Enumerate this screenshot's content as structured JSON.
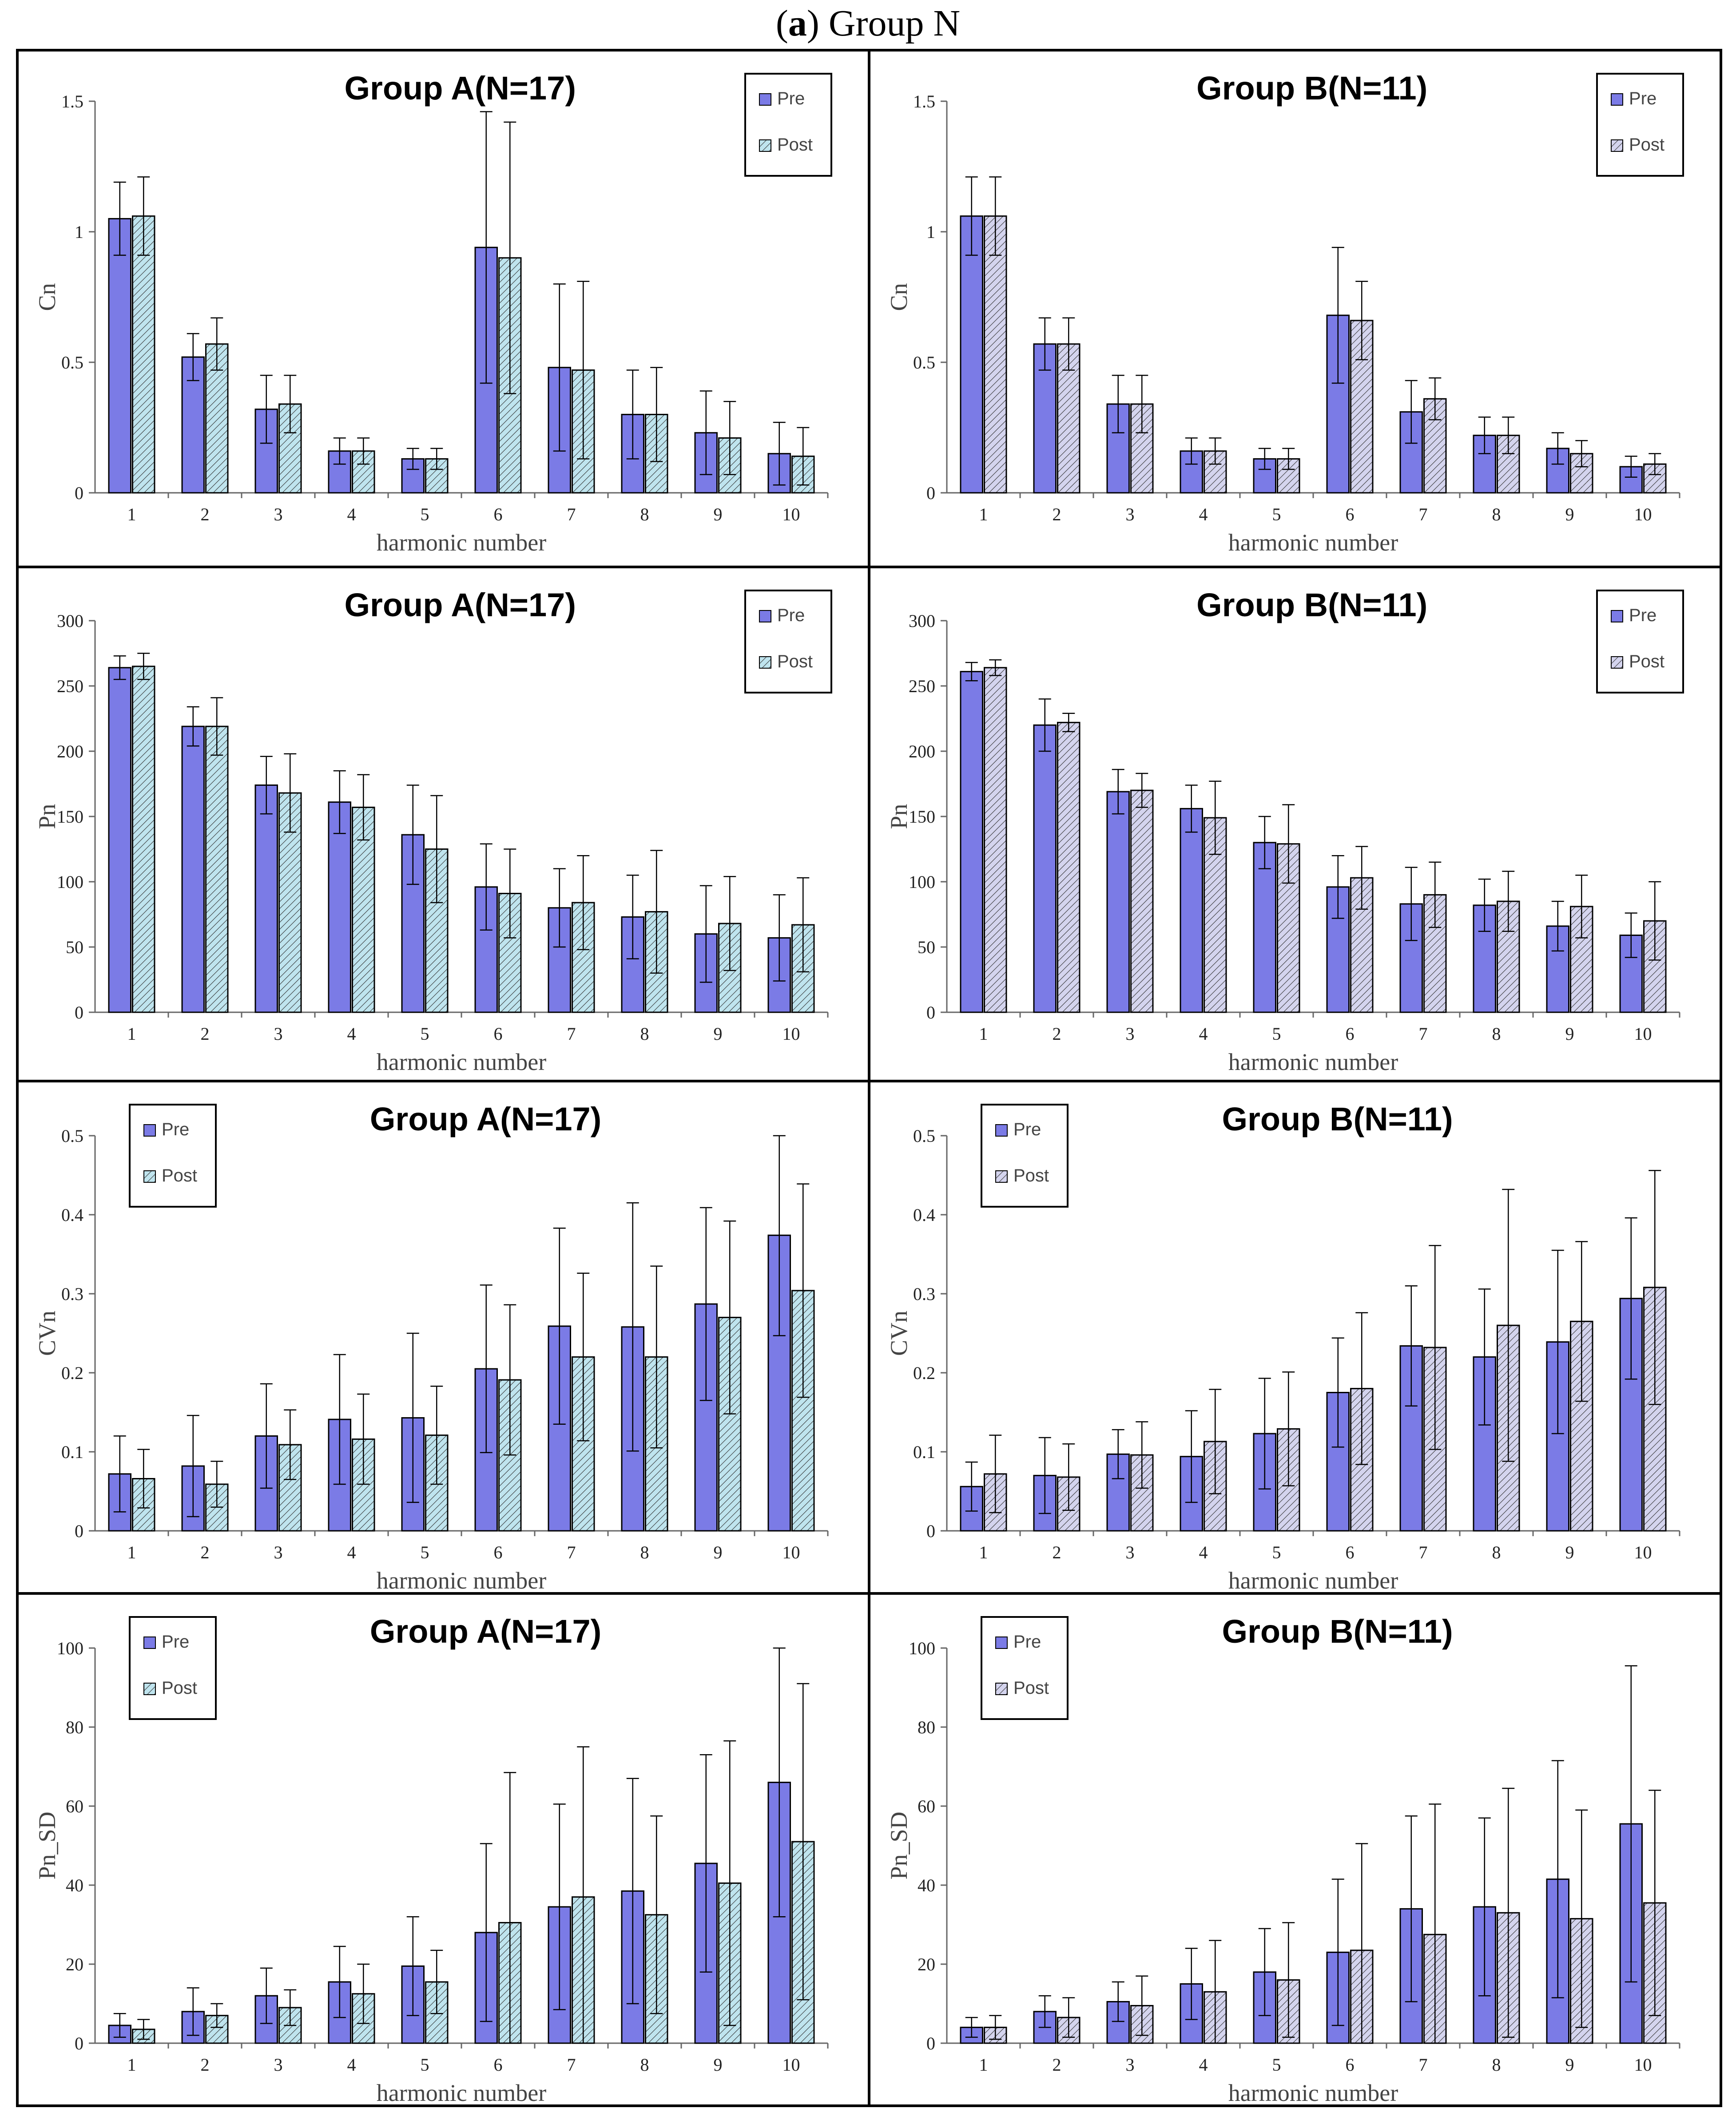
{
  "figure": {
    "label": "a",
    "title": "Group N"
  },
  "colors": {
    "pre": "#7b7be6",
    "post_a": "#bfe4ee",
    "post_b": "#d4d4ee",
    "hatch": "#333333",
    "axis": "#666666"
  },
  "chart_data": [
    {
      "type": "bar",
      "title": "Group A(N=17)",
      "xlabel": "harmonic number",
      "ylabel": "Cn",
      "categories": [
        "1",
        "2",
        "3",
        "4",
        "5",
        "6",
        "7",
        "8",
        "9",
        "10"
      ],
      "ylim": [
        0,
        1.5
      ],
      "yticks": [
        "0",
        "0.5",
        "1",
        "1.5"
      ],
      "legend": "top-right",
      "series": [
        {
          "name": "Pre",
          "values": [
            1.05,
            0.52,
            0.32,
            0.16,
            0.13,
            0.94,
            0.48,
            0.3,
            0.23,
            0.15
          ],
          "errors": [
            0.14,
            0.09,
            0.13,
            0.05,
            0.04,
            0.52,
            0.32,
            0.17,
            0.16,
            0.12
          ]
        },
        {
          "name": "Post",
          "values": [
            1.06,
            0.57,
            0.34,
            0.16,
            0.13,
            0.9,
            0.47,
            0.3,
            0.21,
            0.14
          ],
          "errors": [
            0.15,
            0.1,
            0.11,
            0.05,
            0.04,
            0.52,
            0.34,
            0.18,
            0.14,
            0.11
          ]
        }
      ]
    },
    {
      "type": "bar",
      "title": "Group B(N=11)",
      "xlabel": "harmonic number",
      "ylabel": "Cn",
      "categories": [
        "1",
        "2",
        "3",
        "4",
        "5",
        "6",
        "7",
        "8",
        "9",
        "10"
      ],
      "ylim": [
        0,
        1.5
      ],
      "yticks": [
        "0",
        "0.5",
        "1",
        "1.5"
      ],
      "legend": "top-right",
      "series": [
        {
          "name": "Pre",
          "values": [
            1.06,
            0.57,
            0.34,
            0.16,
            0.13,
            0.68,
            0.31,
            0.22,
            0.17,
            0.1
          ],
          "errors": [
            0.15,
            0.1,
            0.11,
            0.05,
            0.04,
            0.26,
            0.12,
            0.07,
            0.06,
            0.04
          ]
        },
        {
          "name": "Post",
          "values": [
            1.06,
            0.57,
            0.34,
            0.16,
            0.13,
            0.66,
            0.36,
            0.22,
            0.15,
            0.11
          ],
          "errors": [
            0.15,
            0.1,
            0.11,
            0.05,
            0.04,
            0.15,
            0.08,
            0.07,
            0.05,
            0.04
          ]
        }
      ]
    },
    {
      "type": "bar",
      "title": "Group A(N=17)",
      "xlabel": "harmonic number",
      "ylabel": "Pn",
      "categories": [
        "1",
        "2",
        "3",
        "4",
        "5",
        "6",
        "7",
        "8",
        "9",
        "10"
      ],
      "ylim": [
        0,
        300
      ],
      "yticks": [
        "0",
        "50",
        "100",
        "150",
        "200",
        "250",
        "300"
      ],
      "legend": "top-right",
      "series": [
        {
          "name": "Pre",
          "values": [
            264,
            219,
            174,
            161,
            136,
            96,
            80,
            73,
            60,
            57
          ],
          "errors": [
            9,
            15,
            22,
            24,
            38,
            33,
            30,
            32,
            37,
            33
          ]
        },
        {
          "name": "Post",
          "values": [
            265,
            219,
            168,
            157,
            125,
            91,
            84,
            77,
            68,
            67
          ],
          "errors": [
            10,
            22,
            30,
            25,
            41,
            34,
            36,
            47,
            36,
            36
          ]
        }
      ]
    },
    {
      "type": "bar",
      "title": "Group B(N=11)",
      "xlabel": "harmonic number",
      "ylabel": "Pn",
      "categories": [
        "1",
        "2",
        "3",
        "4",
        "5",
        "6",
        "7",
        "8",
        "9",
        "10"
      ],
      "ylim": [
        0,
        300
      ],
      "yticks": [
        "0",
        "50",
        "100",
        "150",
        "200",
        "250",
        "300"
      ],
      "legend": "top-right",
      "series": [
        {
          "name": "Pre",
          "values": [
            261,
            220,
            169,
            156,
            130,
            96,
            83,
            82,
            66,
            59
          ],
          "errors": [
            7,
            20,
            17,
            18,
            20,
            24,
            28,
            20,
            19,
            17
          ]
        },
        {
          "name": "Post",
          "values": [
            264,
            222,
            170,
            149,
            129,
            103,
            90,
            85,
            81,
            70
          ],
          "errors": [
            6,
            7,
            13,
            28,
            30,
            24,
            25,
            23,
            24,
            30
          ]
        }
      ]
    },
    {
      "type": "bar",
      "title": "Group A(N=17)",
      "xlabel": "harmonic number",
      "ylabel": "CVn",
      "categories": [
        "1",
        "2",
        "3",
        "4",
        "5",
        "6",
        "7",
        "8",
        "9",
        "10"
      ],
      "ylim": [
        0,
        0.5
      ],
      "yticks": [
        "0",
        "0.1",
        "0.2",
        "0.3",
        "0.4",
        "0.5"
      ],
      "legend": "top-left",
      "series": [
        {
          "name": "Pre",
          "values": [
            0.072,
            0.082,
            0.12,
            0.141,
            0.143,
            0.205,
            0.259,
            0.258,
            0.287,
            0.374
          ],
          "errors": [
            0.048,
            0.064,
            0.066,
            0.082,
            0.107,
            0.106,
            0.124,
            0.157,
            0.122,
            0.127
          ]
        },
        {
          "name": "Post",
          "values": [
            0.066,
            0.059,
            0.109,
            0.116,
            0.121,
            0.191,
            0.22,
            0.22,
            0.27,
            0.304
          ],
          "errors": [
            0.037,
            0.029,
            0.044,
            0.057,
            0.062,
            0.095,
            0.106,
            0.115,
            0.122,
            0.135
          ]
        }
      ]
    },
    {
      "type": "bar",
      "title": "Group B(N=11)",
      "xlabel": "harmonic number",
      "ylabel": "CVn",
      "categories": [
        "1",
        "2",
        "3",
        "4",
        "5",
        "6",
        "7",
        "8",
        "9",
        "10"
      ],
      "ylim": [
        0,
        0.5
      ],
      "yticks": [
        "0",
        "0.1",
        "0.2",
        "0.3",
        "0.4",
        "0.5"
      ],
      "legend": "top-left",
      "series": [
        {
          "name": "Pre",
          "values": [
            0.056,
            0.07,
            0.097,
            0.094,
            0.123,
            0.175,
            0.234,
            0.22,
            0.239,
            0.294
          ],
          "errors": [
            0.031,
            0.048,
            0.031,
            0.058,
            0.07,
            0.069,
            0.076,
            0.086,
            0.116,
            0.102
          ]
        },
        {
          "name": "Post",
          "values": [
            0.072,
            0.068,
            0.096,
            0.113,
            0.129,
            0.18,
            0.232,
            0.26,
            0.265,
            0.308
          ],
          "errors": [
            0.049,
            0.042,
            0.042,
            0.066,
            0.072,
            0.096,
            0.129,
            0.172,
            0.101,
            0.148
          ]
        }
      ]
    },
    {
      "type": "bar",
      "title": "Group A(N=17)",
      "xlabel": "harmonic number",
      "ylabel": "Pn_SD",
      "categories": [
        "1",
        "2",
        "3",
        "4",
        "5",
        "6",
        "7",
        "8",
        "9",
        "10"
      ],
      "ylim": [
        0,
        100
      ],
      "yticks": [
        "0",
        "20",
        "40",
        "60",
        "80",
        "100"
      ],
      "legend": "top-left",
      "series": [
        {
          "name": "Pre",
          "values": [
            4.5,
            8,
            12,
            15.5,
            19.5,
            28,
            34.5,
            38.5,
            45.5,
            66
          ],
          "errors": [
            3,
            6,
            7,
            9,
            12.5,
            22.5,
            26,
            28.5,
            27.5,
            34
          ]
        },
        {
          "name": "Post",
          "values": [
            3.5,
            7,
            9,
            12.5,
            15.5,
            30.5,
            37,
            32.5,
            40.5,
            51
          ],
          "errors": [
            2.5,
            3,
            4.5,
            7.5,
            8,
            38,
            38,
            25,
            36,
            40
          ]
        }
      ]
    },
    {
      "type": "bar",
      "title": "Group B(N=11)",
      "xlabel": "harmonic number",
      "ylabel": "Pn_SD",
      "categories": [
        "1",
        "2",
        "3",
        "4",
        "5",
        "6",
        "7",
        "8",
        "9",
        "10"
      ],
      "ylim": [
        0,
        100
      ],
      "yticks": [
        "0",
        "20",
        "40",
        "60",
        "80",
        "100"
      ],
      "legend": "top-left",
      "series": [
        {
          "name": "Pre",
          "values": [
            4,
            8,
            10.5,
            15,
            18,
            23,
            34,
            34.5,
            41.5,
            55.5
          ],
          "errors": [
            2.5,
            4,
            5,
            9,
            11,
            18.5,
            23.5,
            22.5,
            30,
            40
          ]
        },
        {
          "name": "Post",
          "values": [
            4,
            6.5,
            9.5,
            13,
            16,
            23.5,
            27.5,
            33,
            31.5,
            35.5
          ],
          "errors": [
            3,
            5,
            7.5,
            13,
            14.5,
            27,
            33,
            31.5,
            27.5,
            28.5
          ]
        }
      ]
    }
  ]
}
